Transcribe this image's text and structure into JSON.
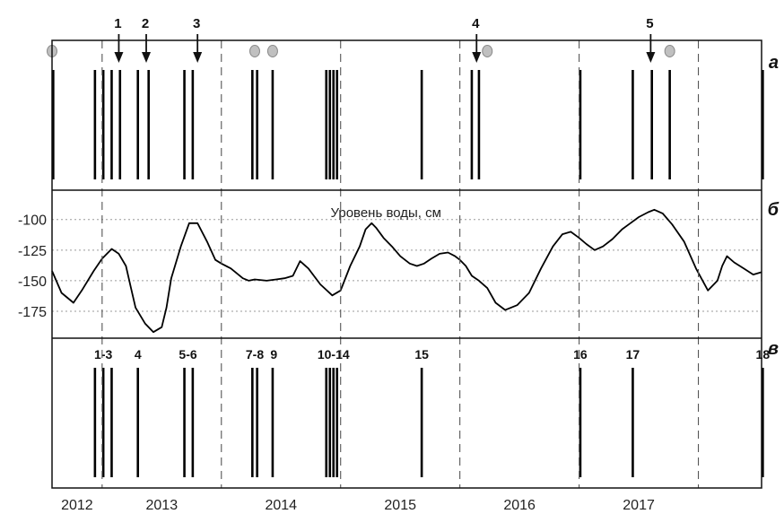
{
  "chart_data": {
    "type": "line",
    "xlim": [
      2012.0,
      2017.95
    ],
    "years": [
      {
        "label": "2012",
        "year": 2012
      },
      {
        "label": "2013",
        "year": 2013
      },
      {
        "label": "2014",
        "year": 2014
      },
      {
        "label": "2015",
        "year": 2015
      },
      {
        "label": "2016",
        "year": 2016
      },
      {
        "label": "2017",
        "year": 2017
      }
    ],
    "year_boundaries": [
      2012.42,
      2013.42,
      2014.42,
      2015.42,
      2016.42,
      2017.42
    ],
    "panel_letters": [
      "а",
      "б",
      "в"
    ],
    "panel_a": {
      "events": [
        2012.01,
        2012.36,
        2012.43,
        2012.5,
        2012.57,
        2012.72,
        2012.81,
        2013.11,
        2013.18,
        2013.68,
        2013.72,
        2013.85,
        2014.3,
        2014.33,
        2014.36,
        2014.39,
        2015.1,
        2015.52,
        2015.58,
        2016.43,
        2016.87,
        2017.03,
        2017.18,
        2017.96
      ],
      "arrows": [
        {
          "label": "1",
          "x": 2012.56
        },
        {
          "label": "2",
          "x": 2012.79
        },
        {
          "label": "3",
          "x": 2013.22
        },
        {
          "label": "4",
          "x": 2015.56
        },
        {
          "label": "5",
          "x": 2017.02
        }
      ],
      "markers": [
        2012.0,
        2013.7,
        2013.85,
        2015.65,
        2017.18
      ]
    },
    "panel_b": {
      "series_label": "Уровень воды, см",
      "yticks": [
        -100,
        -125,
        -150,
        -175
      ],
      "ylim": [
        -197,
        -76
      ],
      "x": [
        2012.0,
        2012.08,
        2012.18,
        2012.25,
        2012.35,
        2012.42,
        2012.5,
        2012.56,
        2012.62,
        2012.66,
        2012.7,
        2012.78,
        2012.85,
        2012.92,
        2012.96,
        2013.0,
        2013.08,
        2013.15,
        2013.22,
        2013.3,
        2013.37,
        2013.42,
        2013.5,
        2013.6,
        2013.65,
        2013.7,
        2013.8,
        2013.88,
        2013.95,
        2014.02,
        2014.08,
        2014.15,
        2014.25,
        2014.35,
        2014.42,
        2014.5,
        2014.58,
        2014.63,
        2014.68,
        2014.72,
        2014.78,
        2014.85,
        2014.92,
        2015.0,
        2015.06,
        2015.12,
        2015.18,
        2015.25,
        2015.32,
        2015.38,
        2015.42,
        2015.47,
        2015.52,
        2015.58,
        2015.65,
        2015.72,
        2015.8,
        2015.9,
        2016.0,
        2016.1,
        2016.2,
        2016.28,
        2016.35,
        2016.42,
        2016.48,
        2016.55,
        2016.62,
        2016.7,
        2016.78,
        2016.85,
        2016.92,
        2017.0,
        2017.05,
        2017.12,
        2017.2,
        2017.3,
        2017.4,
        2017.5,
        2017.58,
        2017.62,
        2017.66,
        2017.72,
        2017.8,
        2017.88,
        2017.95
      ],
      "y": [
        -142,
        -160,
        -168,
        -158,
        -142,
        -132,
        -124,
        -128,
        -138,
        -155,
        -172,
        -185,
        -192,
        -188,
        -172,
        -148,
        -122,
        -103,
        -103,
        -118,
        -133,
        -136,
        -140,
        -148,
        -150,
        -149,
        -150,
        -149,
        -148,
        -146,
        -134,
        -140,
        -153,
        -162,
        -158,
        -138,
        -122,
        -108,
        -103,
        -107,
        -115,
        -122,
        -130,
        -136,
        -138,
        -136,
        -132,
        -128,
        -127,
        -130,
        -133,
        -138,
        -146,
        -150,
        -156,
        -168,
        -174,
        -170,
        -160,
        -140,
        -122,
        -112,
        -110,
        -115,
        -120,
        -125,
        -122,
        -116,
        -108,
        -103,
        -98,
        -94,
        -92,
        -95,
        -104,
        -118,
        -140,
        -158,
        -150,
        -138,
        -130,
        -135,
        -140,
        -145,
        -143
      ],
      "approx": true
    },
    "panel_c": {
      "events": [
        2012.36,
        2012.43,
        2012.5,
        2012.72,
        2013.11,
        2013.18,
        2013.68,
        2013.72,
        2013.85,
        2014.3,
        2014.33,
        2014.36,
        2014.39,
        2015.1,
        2016.43,
        2016.87,
        2017.96
      ],
      "labels": [
        {
          "text": "1-3",
          "x": 2012.43
        },
        {
          "text": "4",
          "x": 2012.72
        },
        {
          "text": "5-6",
          "x": 2013.14
        },
        {
          "text": "7-8",
          "x": 2013.7
        },
        {
          "text": "9",
          "x": 2013.86
        },
        {
          "text": "10-14",
          "x": 2014.36
        },
        {
          "text": "15",
          "x": 2015.1
        },
        {
          "text": "16",
          "x": 2016.43
        },
        {
          "text": "17",
          "x": 2016.87
        },
        {
          "text": "18",
          "x": 2017.96
        }
      ]
    }
  }
}
